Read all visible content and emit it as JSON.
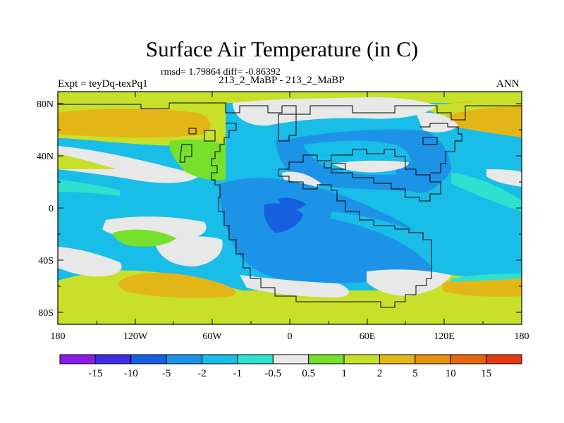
{
  "figure": {
    "title": "Surface Air Temperature (in C)",
    "stats_line": "rmsd= 1.79864 diff= -0.86392",
    "subtitle": "213_2_MaBP - 213_2_MaBP",
    "left_label": "Expt = teyDq-texPq1",
    "right_label": "ANN"
  },
  "axes": {
    "y_ticks": [
      "80N",
      "40N",
      "0",
      "40S",
      "80S"
    ],
    "x_ticks": [
      "180",
      "120W",
      "60W",
      "0",
      "60E",
      "120E",
      "180"
    ]
  },
  "colorbar": {
    "colors": [
      "#8b1ae6",
      "#3b2de0",
      "#1660e0",
      "#1d93e8",
      "#18bde8",
      "#30e0cf",
      "#e8e8e8",
      "#77e02a",
      "#c8e02a",
      "#e3b618",
      "#e8910f",
      "#e8660e",
      "#e33a0e"
    ],
    "labels": [
      "-15",
      "-10",
      "-5",
      "-2",
      "-1",
      "-0.5",
      "0.5",
      "1",
      "2",
      "5",
      "10",
      "15"
    ]
  }
}
